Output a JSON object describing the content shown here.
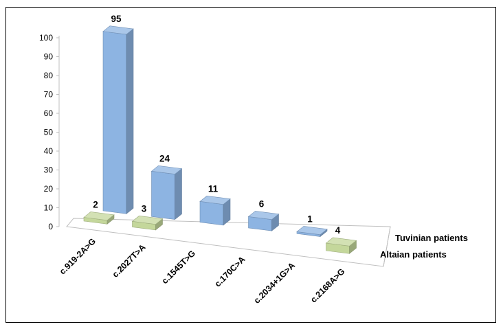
{
  "chart_data": {
    "type": "bar",
    "style": "3d-column",
    "categories": [
      "c.919-2A>G",
      "c.2027T>A",
      "c.1545T>G",
      "c.170C>A",
      "c.2034+1G>A",
      "c.2168A>G"
    ],
    "series": [
      {
        "name": "Tuvinian patients",
        "values": [
          95,
          24,
          11,
          6,
          1,
          0
        ],
        "color": "#8db4e2"
      },
      {
        "name": "Altaian patients",
        "values": [
          2,
          3,
          0,
          0,
          0,
          4
        ],
        "color": "#c4d79b"
      }
    ],
    "data_labels": {
      "Tuvinian patients": [
        "95",
        "24",
        "11",
        "6",
        "1",
        ""
      ],
      "Altaian patients": [
        "2",
        "3",
        "",
        "",
        "",
        "4"
      ]
    },
    "ylim": [
      0,
      100
    ],
    "yticks": [
      "0",
      "10",
      "20",
      "30",
      "40",
      "50",
      "60",
      "70",
      "80",
      "90",
      "100"
    ],
    "grid": false,
    "title": "",
    "xlabel": "",
    "ylabel": ""
  }
}
